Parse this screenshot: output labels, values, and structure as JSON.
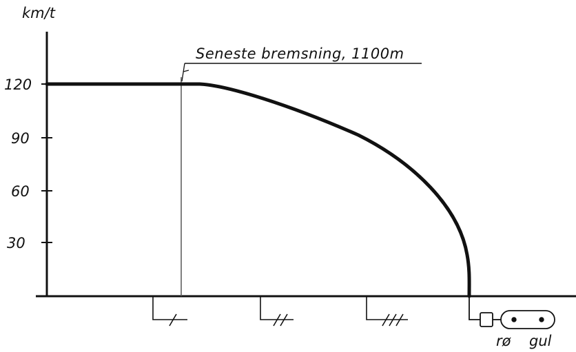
{
  "diagram": {
    "y_axis_unit": "km/t",
    "y_ticks": [
      "120",
      "90",
      "60",
      "30"
    ],
    "annotation": "Seneste bremsning, 1100m",
    "signal_labels": {
      "red": "rø",
      "yellow": "gul"
    },
    "curve": {
      "description_values_kmh": [
        120,
        0
      ],
      "flat_speed": 120
    },
    "colors": {
      "ink": "#111111",
      "thin_line": "#555555",
      "background": "#ffffff"
    }
  }
}
